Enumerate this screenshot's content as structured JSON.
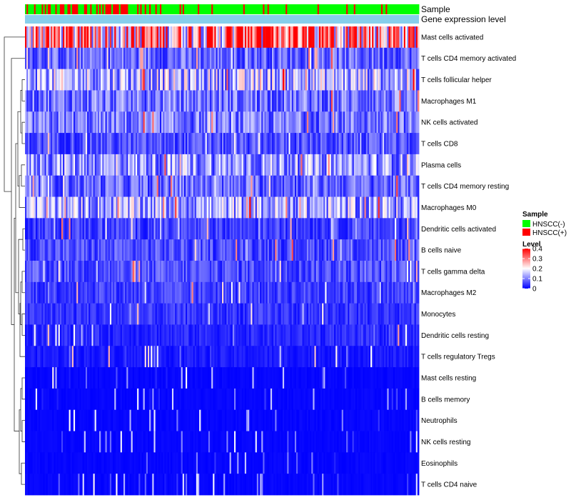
{
  "chart_data": {
    "type": "heatmap",
    "title": "",
    "annotation_rows": [
      "Sample",
      "Gene expression level"
    ],
    "rows": [
      "Mast cells activated",
      "T cells CD4 memory activated",
      "T cells follicular helper",
      "Macrophages M1",
      "NK cells activated",
      "T cells CD8",
      "Plasma cells",
      "T cells CD4 memory resting",
      "Macrophages M0",
      "Dendritic cells activated",
      "B cells naive",
      "T cells gamma delta",
      "Macrophages M2",
      "Monocytes",
      "Dendritic cells resting",
      "T cells regulatory  Tregs",
      "Mast cells resting",
      "B cells memory",
      "Neutrophils",
      "NK cells resting",
      "Eosinophils",
      "T cells CD4 naive"
    ],
    "approx_row_means": [
      0.28,
      0.08,
      0.14,
      0.09,
      0.09,
      0.06,
      0.12,
      0.08,
      0.13,
      0.05,
      0.06,
      0.06,
      0.05,
      0.04,
      0.03,
      0.02,
      0.01,
      0.01,
      0.005,
      0.004,
      0.003,
      0.01
    ],
    "n_samples": 260,
    "color_scale": {
      "min": 0,
      "max": 0.4,
      "colors": [
        "#0000ff",
        "#ffffff",
        "#ff0000"
      ],
      "ticks": [
        0.4,
        0.3,
        0.2,
        0.1,
        0
      ]
    },
    "legend": {
      "sample_title": "Sample",
      "sample_entries": [
        {
          "label": "HNSCC(-)",
          "color": "#00ff00"
        },
        {
          "label": "HNSCC(+)",
          "color": "#ff0000"
        }
      ],
      "level_title": "Level",
      "level_tick_labels": [
        "0.4",
        "0.3",
        "0.2",
        "0.1",
        "0"
      ],
      "placement": "right"
    },
    "gene_expression_color": "#87ceeb",
    "dendrogram": "row-left"
  }
}
